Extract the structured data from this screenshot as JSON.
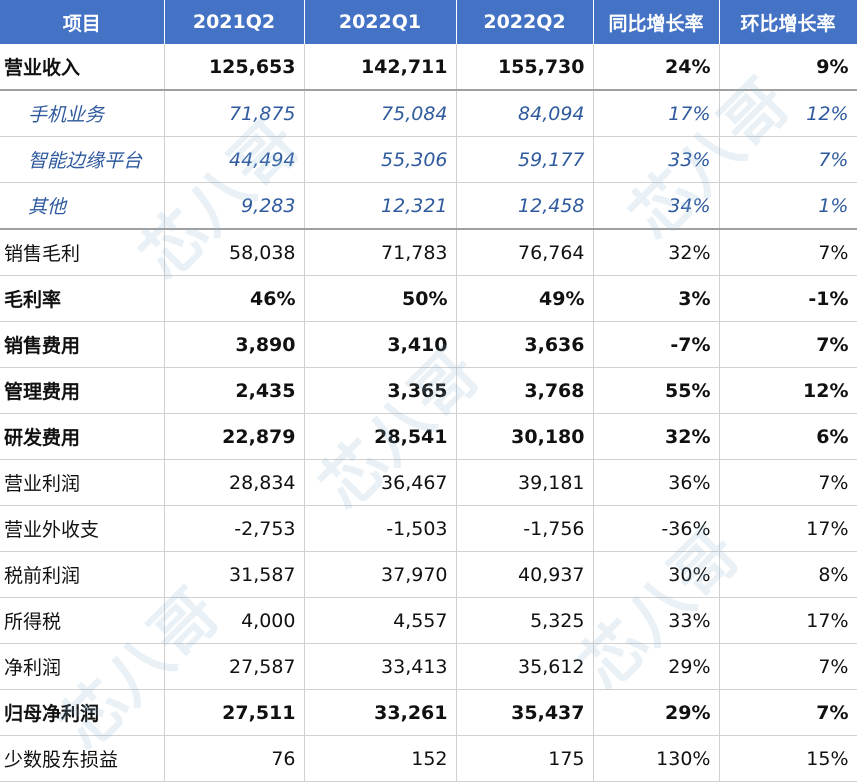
{
  "header": [
    "项目",
    "2021Q2",
    "2022Q1",
    "2022Q2",
    "同比增长率",
    "环比增长率"
  ],
  "rows": [
    {
      "style": "bold",
      "cells": [
        "营业收入",
        "125,653",
        "142,711",
        "155,730",
        "24%",
        "9%"
      ]
    },
    {
      "style": "sub",
      "cells": [
        "手机业务",
        "71,875",
        "75,084",
        "84,094",
        "17%",
        "12%"
      ]
    },
    {
      "style": "sub",
      "cells": [
        "智能边缘平台",
        "44,494",
        "55,306",
        "59,177",
        "33%",
        "7%"
      ]
    },
    {
      "style": "sub",
      "cells": [
        "其他",
        "9,283",
        "12,321",
        "12,458",
        "34%",
        "1%"
      ]
    },
    {
      "style": "normal",
      "cells": [
        "销售毛利",
        "58,038",
        "71,783",
        "76,764",
        "32%",
        "7%"
      ]
    },
    {
      "style": "bold",
      "cells": [
        "毛利率",
        "46%",
        "50%",
        "49%",
        "3%",
        "-1%"
      ]
    },
    {
      "style": "bold",
      "cells": [
        "销售费用",
        "3,890",
        "3,410",
        "3,636",
        "-7%",
        "7%"
      ]
    },
    {
      "style": "bold",
      "cells": [
        "管理费用",
        "2,435",
        "3,365",
        "3,768",
        "55%",
        "12%"
      ]
    },
    {
      "style": "bold",
      "cells": [
        "研发费用",
        "22,879",
        "28,541",
        "30,180",
        "32%",
        "6%"
      ]
    },
    {
      "style": "normal",
      "cells": [
        "营业利润",
        "28,834",
        "36,467",
        "39,181",
        "36%",
        "7%"
      ]
    },
    {
      "style": "normal",
      "cells": [
        "营业外收支",
        "-2,753",
        "-1,503",
        "-1,756",
        "-36%",
        "17%"
      ]
    },
    {
      "style": "normal",
      "cells": [
        "税前利润",
        "31,587",
        "37,970",
        "40,937",
        "30%",
        "8%"
      ]
    },
    {
      "style": "normal",
      "cells": [
        "所得税",
        "4,000",
        "4,557",
        "5,325",
        "33%",
        "17%"
      ]
    },
    {
      "style": "normal",
      "cells": [
        "净利润",
        "27,587",
        "33,413",
        "35,612",
        "29%",
        "7%"
      ]
    },
    {
      "style": "bold",
      "cells": [
        "归母净利润",
        "27,511",
        "33,261",
        "35,437",
        "29%",
        "7%"
      ]
    },
    {
      "style": "normal",
      "cells": [
        "少数股东损益",
        "76",
        "152",
        "175",
        "130%",
        "15%"
      ]
    }
  ],
  "watermark": "芯八哥"
}
